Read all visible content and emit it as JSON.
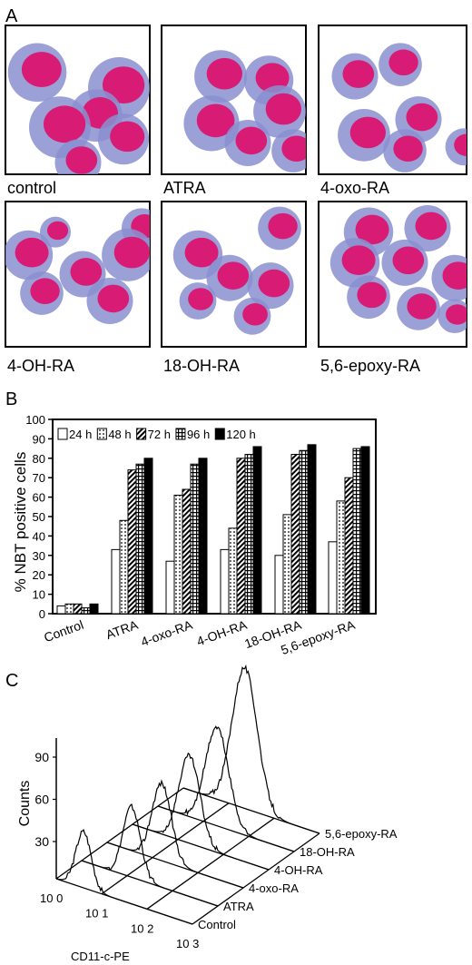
{
  "panels": {
    "a_letter": "A",
    "b_letter": "B",
    "c_letter": "C"
  },
  "micrographs": [
    {
      "label": "control"
    },
    {
      "label": "ATRA"
    },
    {
      "label": "4-oxo-RA"
    },
    {
      "label": "4-OH-RA"
    },
    {
      "label": "18-OH-RA"
    },
    {
      "label": "5,6-epoxy-RA"
    }
  ],
  "colors": {
    "nucleus": "#d81b74",
    "cytoplasm": "#8a8fd0",
    "frame": "#000000"
  },
  "chart_data": [
    {
      "type": "bar",
      "ylabel": "% NBT positive cells",
      "ylim": [
        0,
        100
      ],
      "yticks": [
        0,
        10,
        20,
        30,
        40,
        50,
        60,
        70,
        80,
        90,
        100
      ],
      "categories": [
        "Control",
        "ATRA",
        "4-oxo-RA",
        "4-OH-RA",
        "18-OH-RA",
        "5,6-epoxy-RA"
      ],
      "legend_position": "top-inside",
      "series": [
        {
          "name": "24 h",
          "values": [
            4,
            33,
            27,
            33,
            30,
            37
          ],
          "pattern": "white"
        },
        {
          "name": "48 h",
          "values": [
            5,
            48,
            61,
            44,
            51,
            58
          ],
          "pattern": "dots"
        },
        {
          "name": "72 h",
          "values": [
            5,
            74,
            64,
            80,
            82,
            70
          ],
          "pattern": "diagonal"
        },
        {
          "name": "96 h",
          "values": [
            3,
            77,
            77,
            82,
            84,
            85
          ],
          "pattern": "grid"
        },
        {
          "name": "120 h",
          "values": [
            5,
            80,
            80,
            86,
            87,
            86
          ],
          "pattern": "black"
        }
      ]
    },
    {
      "type": "line",
      "ylabel": "Counts",
      "xlabel": "CD11-c-PE",
      "yticks": [
        30,
        60,
        90
      ],
      "xticks": [
        "10 0",
        "10 1",
        "10 2",
        "10 3"
      ],
      "x_scale": "log",
      "series": [
        {
          "name": "Control",
          "peak_log10": 0.6,
          "peak_count": 40
        },
        {
          "name": "ATRA",
          "peak_log10": 1.1,
          "peak_count": 50
        },
        {
          "name": "4-oxo-RA",
          "peak_log10": 1.2,
          "peak_count": 55
        },
        {
          "name": "4-OH-RA",
          "peak_log10": 1.25,
          "peak_count": 62
        },
        {
          "name": "18-OH-RA",
          "peak_log10": 1.3,
          "peak_count": 70
        },
        {
          "name": "5,6-epoxy-RA",
          "peak_log10": 1.35,
          "peak_count": 100
        }
      ]
    }
  ]
}
